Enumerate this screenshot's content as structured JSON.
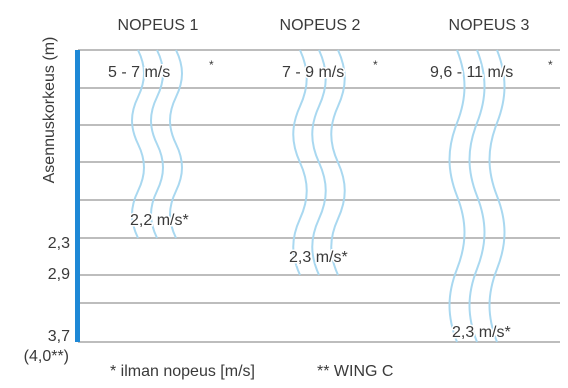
{
  "y_axis_label": "Asennuskorkeus (m)",
  "columns": [
    {
      "title": "NOPEUS 1",
      "top_speed": "5 - 7 m/s",
      "top_mark": "*",
      "bottom_speed": "2,2 m/s*"
    },
    {
      "title": "NOPEUS 2",
      "top_speed": "7 - 9 m/s",
      "top_mark": "*",
      "bottom_speed": "2,3 m/s*"
    },
    {
      "title": "NOPEUS 3",
      "top_speed": "9,6 - 11 m/s",
      "top_mark": "*",
      "bottom_speed": "2,3 m/s*"
    }
  ],
  "height_labels": [
    "2,3",
    "2,9",
    "3,7",
    "(4,0**)"
  ],
  "footnotes": {
    "air_speed": "* ilman nopeus [m/s]",
    "wing": "** WING C"
  },
  "colors": {
    "grid_line": "#bdbdbd",
    "height_bar": "#1e88d6",
    "airflow": "#a9d8f0",
    "text": "#3a3a3a"
  }
}
